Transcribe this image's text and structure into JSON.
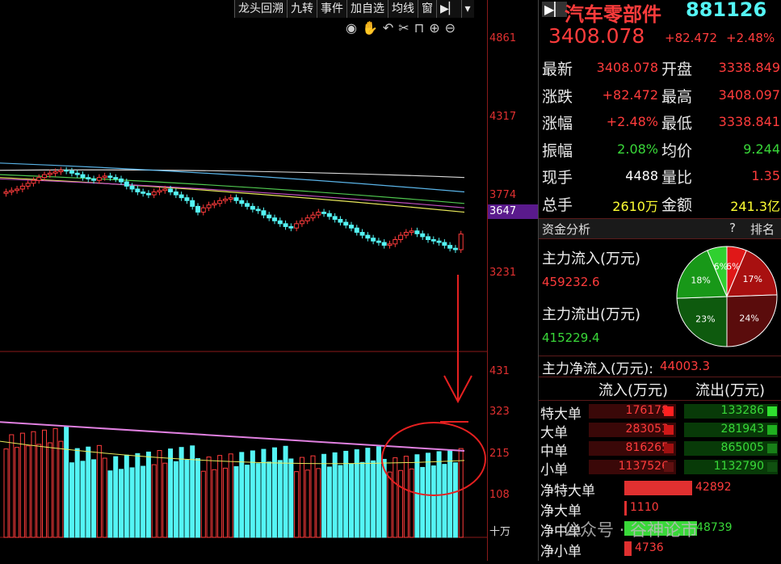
{
  "menu": [
    "龙头回溯",
    "九转",
    "事件",
    "加自选",
    "均线",
    "窗"
  ],
  "axis_top": [
    "4861",
    "4317",
    "3774",
    "3231"
  ],
  "current_price_tag": "3647",
  "axis_bottom": [
    "431",
    "323",
    "215",
    "108",
    "十万"
  ],
  "header": {
    "name": "汽车零部件",
    "code": "881126",
    "price": "3408.078",
    "change": "+82.472",
    "pct": "+2.48%"
  },
  "quote": [
    {
      "l1": "最新",
      "v1": "3408.078",
      "c1": "red",
      "l2": "开盘",
      "v2": "3338.849",
      "c2": "red"
    },
    {
      "l1": "涨跌",
      "v1": "+82.472",
      "c1": "red",
      "l2": "最高",
      "v2": "3408.097",
      "c2": "red"
    },
    {
      "l1": "涨幅",
      "v1": "+2.48%",
      "c1": "red",
      "l2": "最低",
      "v2": "3338.841",
      "c2": "red"
    },
    {
      "l1": "振幅",
      "v1": "2.08%",
      "c1": "green",
      "l2": "均价",
      "v2": "9.244",
      "c2": "green"
    },
    {
      "l1": "现手",
      "v1": "4488",
      "c1": "white",
      "l2": "量比",
      "v2": "1.35",
      "c2": "red"
    },
    {
      "l1": "总手",
      "v1": "2610万",
      "c1": "yellow",
      "l2": "金额",
      "v2": "241.3亿",
      "c2": "yellow"
    }
  ],
  "fund": {
    "title": "资金分析",
    "q": "?",
    "rank": "排名",
    "in_label": "主力流入(万元)",
    "in_value": "459232.6",
    "out_label": "主力流出(万元)",
    "out_value": "415229.4",
    "net_label": "主力净流入(万元):",
    "net_value": "44003.3",
    "pie": [
      "6%",
      "17%",
      "24%",
      "23%",
      "18%",
      "6%"
    ]
  },
  "flow_table": {
    "h_in": "流入(万元)",
    "h_out": "流出(万元)",
    "rows": [
      {
        "label": "特大单",
        "in": "176178",
        "out": "133286"
      },
      {
        "label": "大单",
        "in": "283053",
        "out": "281943"
      },
      {
        "label": "中单",
        "in": "816265",
        "out": "865005"
      },
      {
        "label": "小单",
        "in": "1137526",
        "out": "1132790"
      }
    ]
  },
  "net_table": [
    {
      "label": "净特大单",
      "value": "42892",
      "color": "red",
      "frac": 0.93
    },
    {
      "label": "净大单",
      "value": "1110",
      "color": "red",
      "frac": 0.03
    },
    {
      "label": "净中单",
      "value": "-48739",
      "color": "green",
      "frac": 1.0
    },
    {
      "label": "净小单",
      "value": "4736",
      "color": "red",
      "frac": 0.1
    }
  ],
  "watermark": "公众号 · 谷神论市",
  "colors": {
    "red": "#ff3c3c",
    "green": "#39d839",
    "cyan": "#54f4f4",
    "axis": "#8a1a1a"
  }
}
